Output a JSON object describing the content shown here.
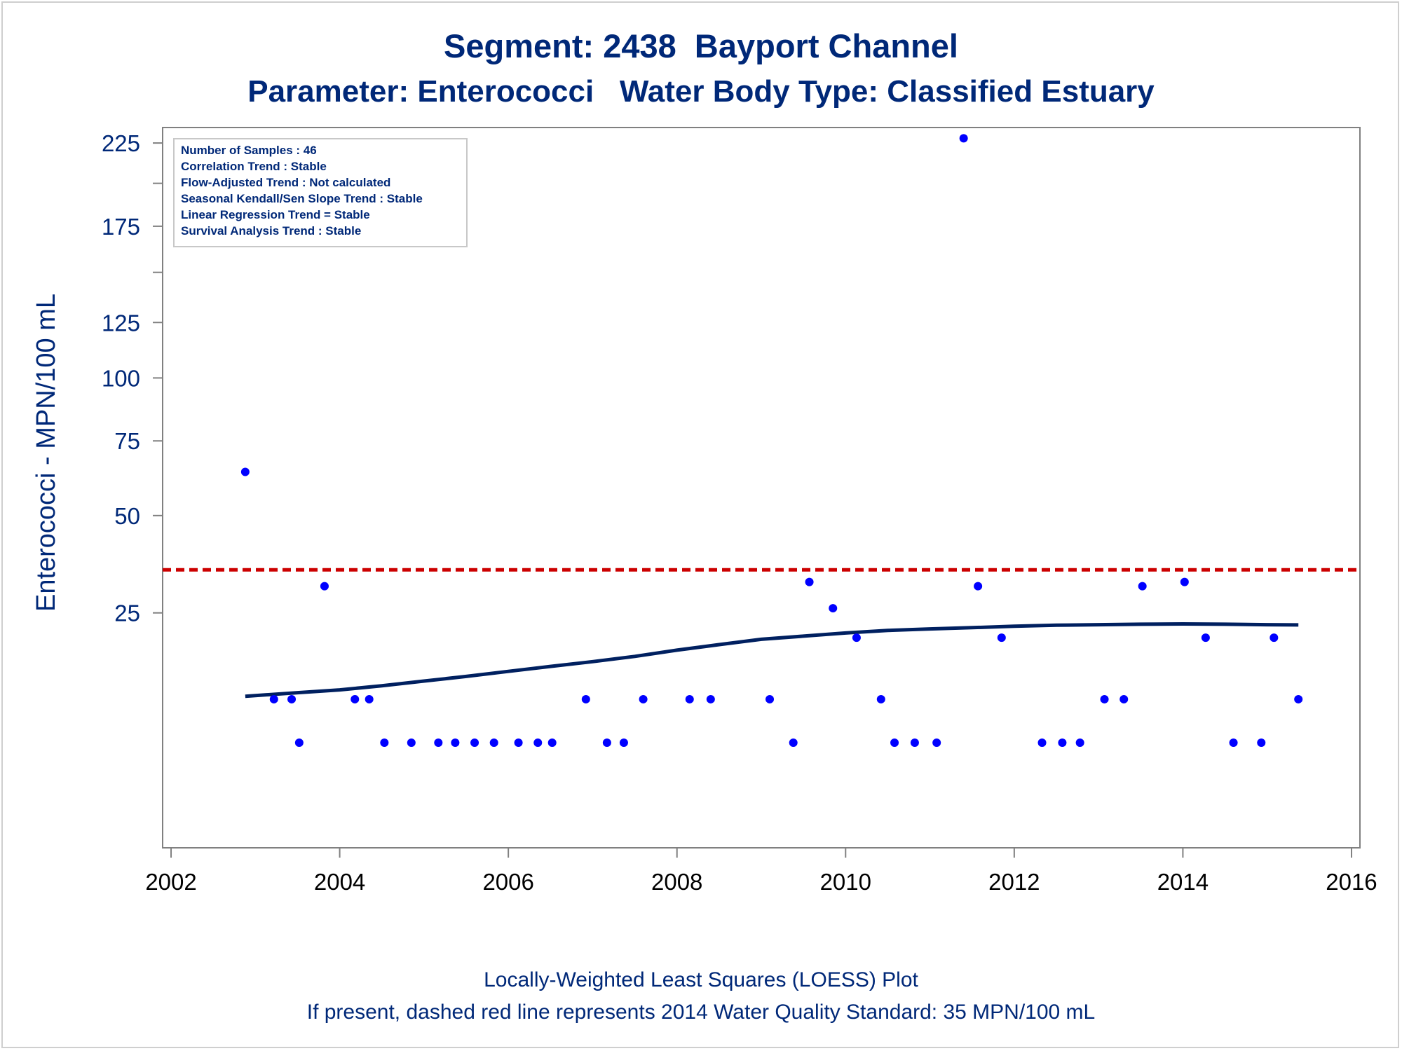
{
  "colors": {
    "title": "#002878",
    "axis_text_x": "#000000",
    "axis_text_y": "#002878",
    "axis_line": "#808080",
    "points": "#0000ff",
    "loess": "#002060",
    "standard_line": "#cc0000",
    "stats_box_border": "#c8c8c8"
  },
  "title": "Segment: 2438  Bayport Channel",
  "subtitle": "Parameter: Enterococci   Water Body Type: Classified Estuary",
  "footnotes": [
    "Locally-Weighted Least Squares (LOESS) Plot",
    "If present, dashed red line represents 2014 Water Quality Standard: 35 MPN/100 mL"
  ],
  "stats_box": [
    "Number of Samples : 46",
    "Correlation Trend : Stable",
    "Flow-Adjusted Trend : Not calculated",
    "Seasonal Kendall/Sen Slope Trend : Stable",
    "Linear Regression Trend = Stable",
    "Survival Analysis Trend : Stable"
  ],
  "chart_data": {
    "type": "scatter",
    "xlabel": "",
    "ylabel": "Enterococci - MPN/100 mL",
    "y_scale": "sqrt",
    "xlim": [
      2001.9,
      2016.1
    ],
    "ylim": [
      0,
      235
    ],
    "x_ticks": [
      2002,
      2004,
      2006,
      2008,
      2010,
      2012,
      2014,
      2016
    ],
    "y_ticks": [
      25,
      50,
      75,
      100,
      125,
      175,
      225
    ],
    "y_minor_ticks": [
      150,
      200
    ],
    "grid": false,
    "standard_line": {
      "value": 35,
      "style": "dashed"
    },
    "series": [
      {
        "kind": "points",
        "x": [
          2002.88,
          2003.22,
          2003.43,
          2003.52,
          2003.82,
          2004.18,
          2004.35,
          2004.53,
          2004.85,
          2005.17,
          2005.37,
          2005.6,
          2005.83,
          2006.12,
          2006.35,
          2006.52,
          2006.92,
          2007.17,
          2007.37,
          2007.6,
          2008.15,
          2008.4,
          2009.1,
          2009.38,
          2009.57,
          2009.85,
          2010.13,
          2010.42,
          2010.58,
          2010.82,
          2011.08,
          2011.4,
          2011.57,
          2011.85,
          2012.33,
          2012.57,
          2012.78,
          2013.07,
          2013.3,
          2013.52,
          2014.02,
          2014.27,
          2014.6,
          2014.93,
          2015.08,
          2015.37
        ],
        "y": [
          64,
          10,
          10,
          5,
          31,
          10,
          10,
          5,
          5,
          5,
          5,
          5,
          5,
          5,
          5,
          5,
          10,
          5,
          5,
          10,
          10,
          10,
          10,
          5,
          32,
          26,
          20,
          10,
          5,
          5,
          5,
          228,
          31,
          20,
          5,
          5,
          5,
          10,
          10,
          31,
          32,
          20,
          5,
          5,
          20,
          10
        ]
      },
      {
        "kind": "loess",
        "x": [
          2002.88,
          2003.5,
          2004.0,
          2004.5,
          2005.0,
          2005.5,
          2006.0,
          2006.5,
          2007.0,
          2007.5,
          2008.0,
          2008.5,
          2009.0,
          2009.5,
          2010.0,
          2010.5,
          2011.0,
          2011.5,
          2012.0,
          2012.5,
          2013.0,
          2013.5,
          2014.0,
          2014.5,
          2015.0,
          2015.37
        ],
        "y": [
          10.4,
          10.9,
          11.3,
          11.9,
          12.6,
          13.3,
          14.1,
          14.9,
          15.7,
          16.6,
          17.7,
          18.7,
          19.7,
          20.3,
          20.9,
          21.4,
          21.7,
          21.95,
          22.25,
          22.45,
          22.55,
          22.65,
          22.7,
          22.65,
          22.55,
          22.5
        ]
      }
    ]
  }
}
